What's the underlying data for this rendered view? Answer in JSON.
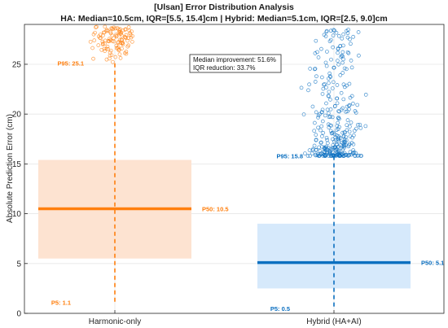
{
  "chart_data": {
    "type": "scatter",
    "title": "[Ulsan] Error Distribution Analysis",
    "subtitle": "HA: Median=10.5cm, IQR=[5.5, 15.4]cm | Hybrid: Median=5.1cm, IQR=[2.5, 9.0]cm",
    "ylabel": "Absolute Prediction Error (cm)",
    "xlabel": "",
    "ylim": [
      0,
      29
    ],
    "yticks": [
      0,
      5,
      10,
      15,
      20,
      25
    ],
    "grid": true,
    "categories": [
      "Harmonic-only",
      "Hybrid (HA+AI)"
    ],
    "groups": [
      {
        "category": "Harmonic-only",
        "color": "#FF7F0E",
        "fill_color": "#FDE3D1",
        "p5": 1.1,
        "q1": 5.5,
        "median": 10.5,
        "q3": 15.4,
        "p95": 25.1,
        "outlier_range": [
          25.1,
          28.8
        ],
        "outlier_count": 110,
        "labels": {
          "p95": "P95: 25.1",
          "p50": "P50: 10.5",
          "p5": "P5: 1.1"
        }
      },
      {
        "category": "Hybrid (HA+AI)",
        "color": "#0B6FC0",
        "fill_color": "#D6E9FB",
        "p5": 0.5,
        "q1": 2.5,
        "median": 5.1,
        "q3": 9.0,
        "p95": 15.8,
        "outlier_range": [
          15.8,
          28.5
        ],
        "outlier_count": 330,
        "labels": {
          "p95": "P95: 15.8",
          "p50": "P50: 5.1",
          "p5": "P5: 0.5"
        }
      }
    ],
    "annotation": {
      "lines": [
        "Median improvement: 51.6%",
        "IQR reduction: 33.7%"
      ]
    }
  }
}
